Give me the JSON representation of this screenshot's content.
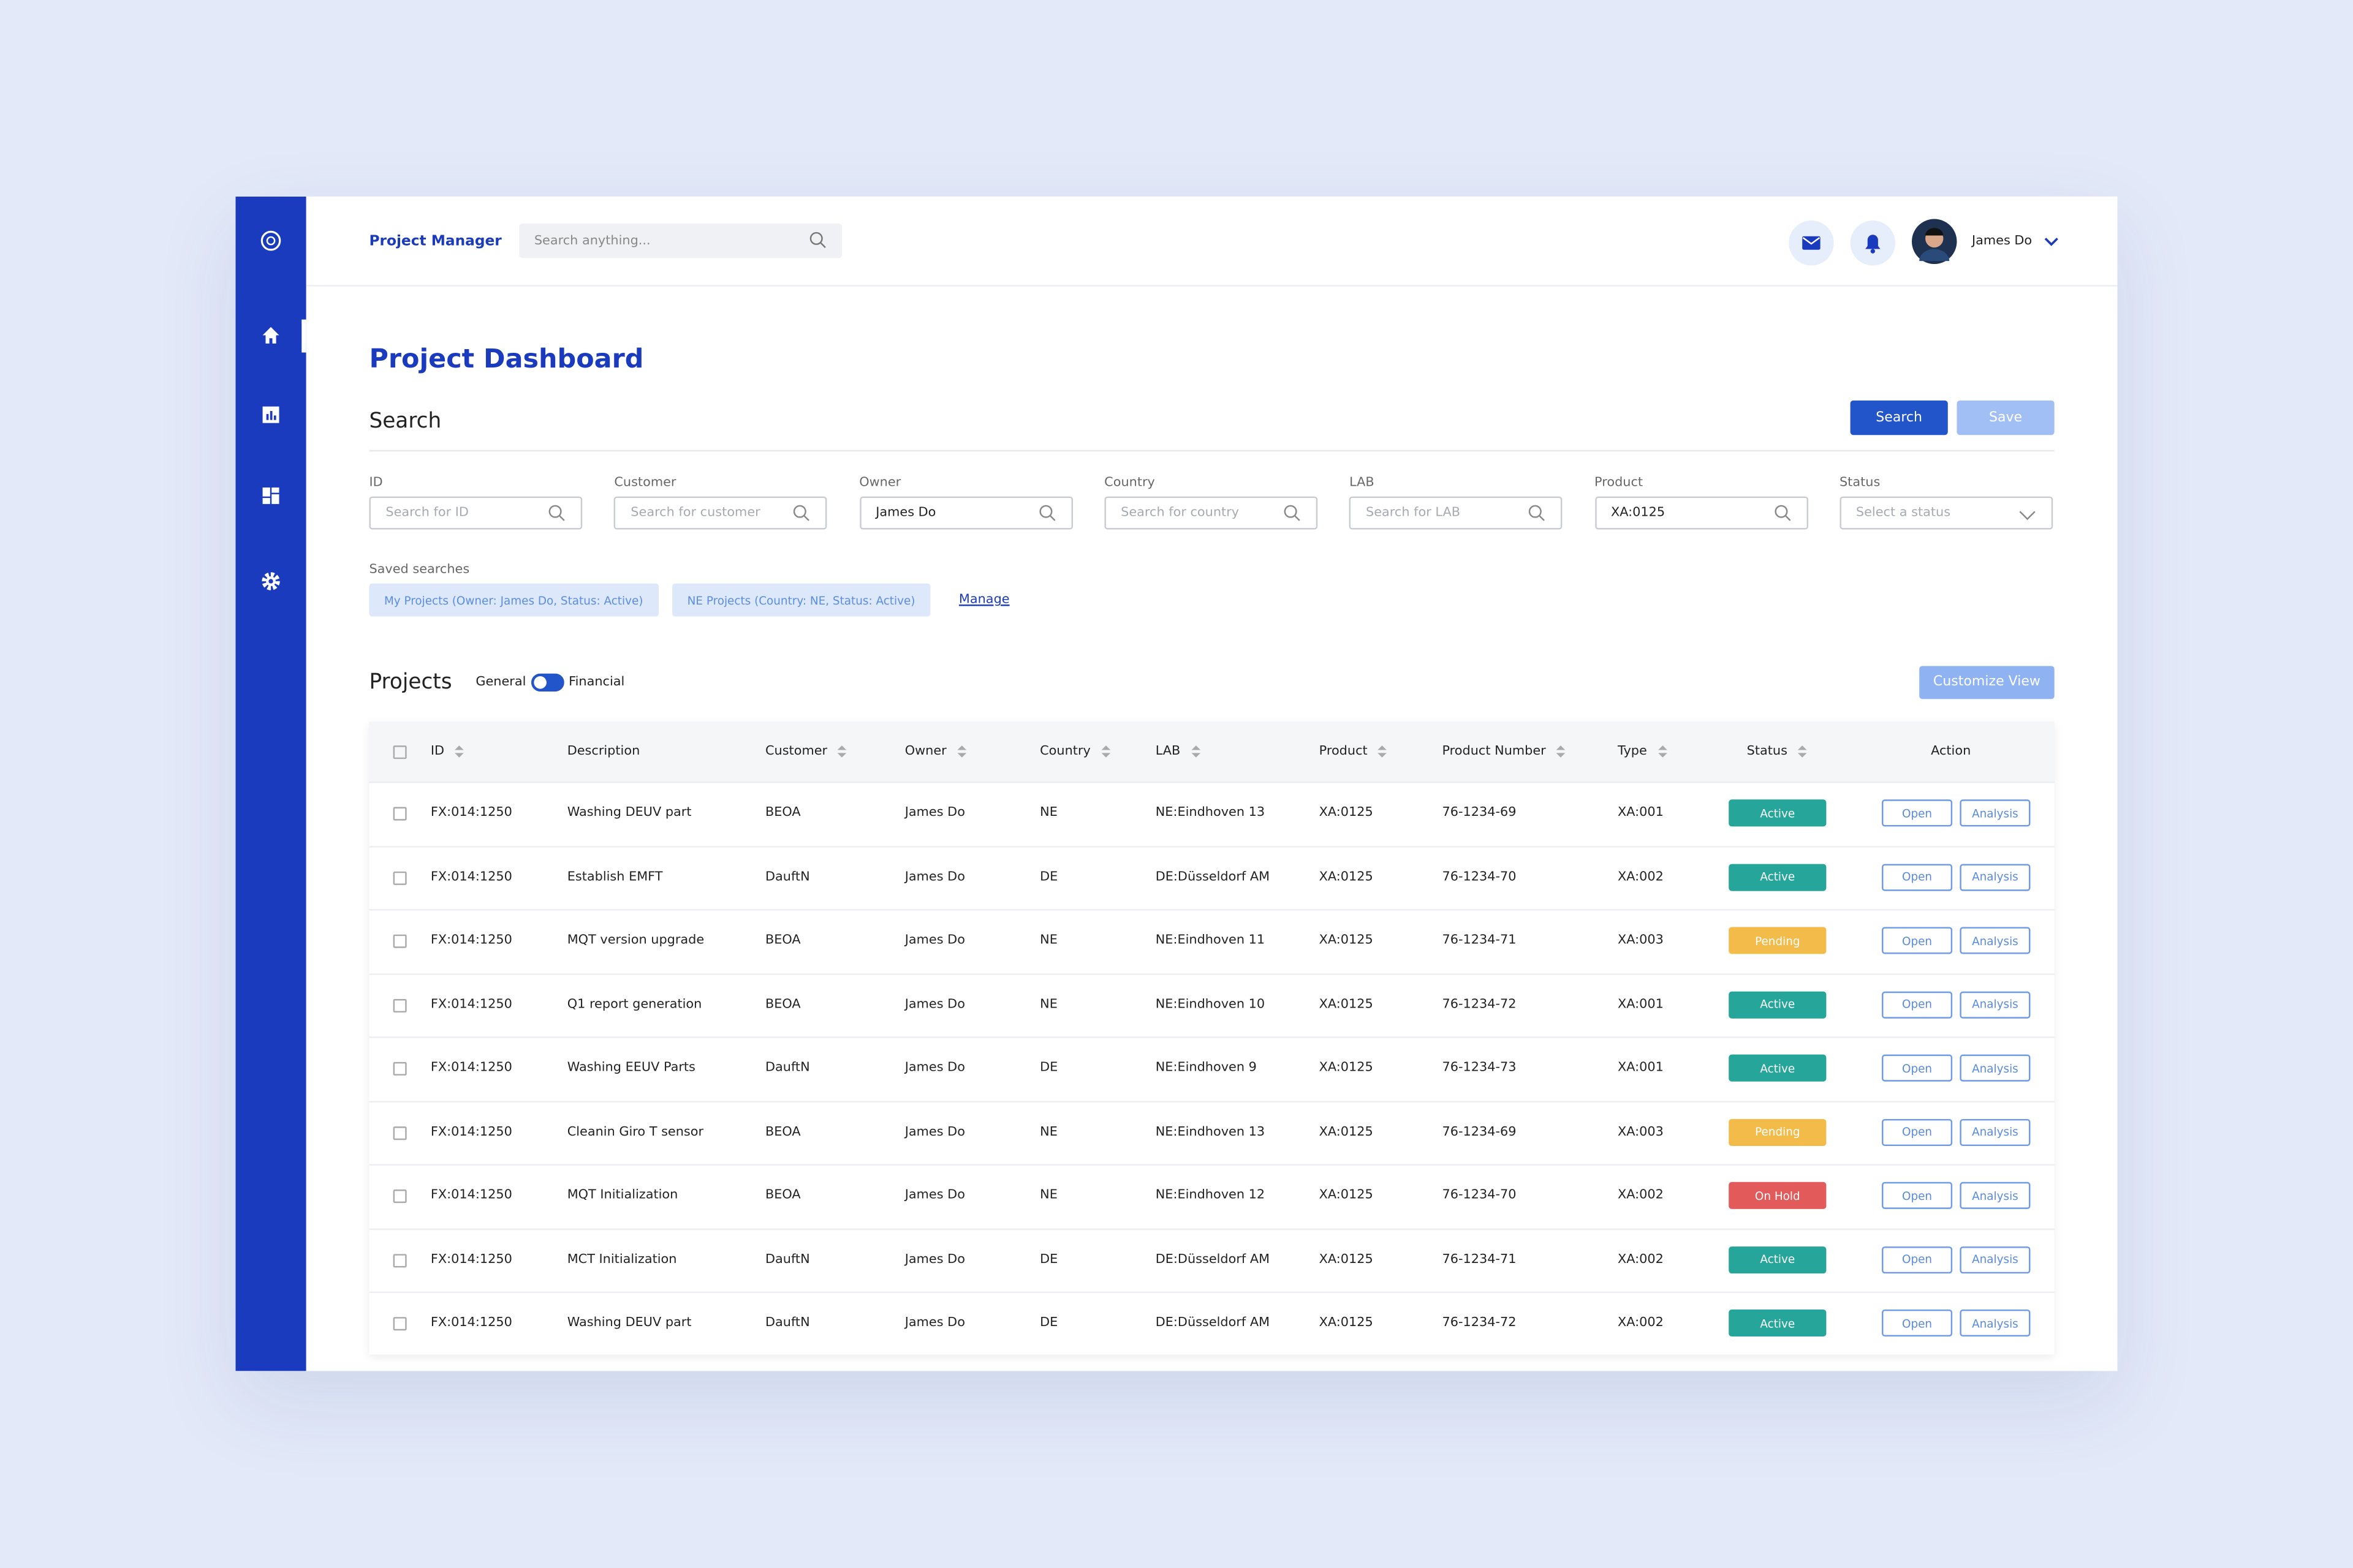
{
  "header": {
    "brand": "Project Manager",
    "search_placeholder": "Search anything...",
    "user": "James Do"
  },
  "page_title": "Project Dashboard",
  "search": {
    "title": "Search",
    "buttons": [
      "Search",
      "Save"
    ],
    "fields": [
      {
        "label": "ID",
        "placeholder": "Search for ID"
      },
      {
        "label": "Customer",
        "placeholder": "Search for customer"
      },
      {
        "label": "Owner",
        "value": "James Do"
      },
      {
        "label": "Country",
        "placeholder": "Search for country"
      },
      {
        "label": "LAB",
        "placeholder": "Search for LAB"
      },
      {
        "label": "Product",
        "value": "XA:0125"
      },
      {
        "label": "Status",
        "placeholder": "Select a status",
        "select": true
      }
    ],
    "saved_label": "Saved searches",
    "saved": [
      "My Projects (Owner: James Do, Status: Active)",
      "NE Projects (Country: NE, Status: Active)"
    ],
    "manage": "Manage"
  },
  "projects": {
    "title": "Projects",
    "toggle": [
      "General",
      "Financial"
    ],
    "customize": "Customize View",
    "columns": [
      {
        "label": "ID",
        "sortable": true
      },
      {
        "label": "Description",
        "sortable": false
      },
      {
        "label": "Customer",
        "sortable": true
      },
      {
        "label": "Owner",
        "sortable": true
      },
      {
        "label": "Country",
        "sortable": true
      },
      {
        "label": "LAB",
        "sortable": true
      },
      {
        "label": "Product",
        "sortable": true
      },
      {
        "label": "Product Number",
        "sortable": true
      },
      {
        "label": "Type",
        "sortable": true
      },
      {
        "label": "Status",
        "sortable": true
      },
      {
        "label": "Action",
        "sortable": false
      }
    ],
    "actions": [
      "Open",
      "Analysis"
    ],
    "status_colors": {
      "Active": "#26a69a",
      "Pending": "#f2bb4a",
      "On Hold": "#e25a5a"
    },
    "rows": [
      [
        "FX:014:1250",
        "Washing DEUV part",
        "BEOA",
        "James Do",
        "NE",
        "NE:Eindhoven 13",
        "XA:0125",
        "76-1234-69",
        "XA:001",
        "Active"
      ],
      [
        "FX:014:1250",
        "Establish EMFT",
        "DauftN",
        "James Do",
        "DE",
        "DE:Düsseldorf  AM",
        "XA:0125",
        "76-1234-70",
        "XA:002",
        "Active"
      ],
      [
        "FX:014:1250",
        "MQT version upgrade",
        "BEOA",
        "James Do",
        "NE",
        "NE:Eindhoven 11",
        "XA:0125",
        "76-1234-71",
        "XA:003",
        "Pending"
      ],
      [
        "FX:014:1250",
        "Q1 report generation",
        "BEOA",
        "James Do",
        "NE",
        "NE:Eindhoven 10",
        "XA:0125",
        "76-1234-72",
        "XA:001",
        "Active"
      ],
      [
        "FX:014:1250",
        "Washing EEUV Parts",
        "DauftN",
        "James Do",
        "DE",
        "NE:Eindhoven 9",
        "XA:0125",
        "76-1234-73",
        "XA:001",
        "Active"
      ],
      [
        "FX:014:1250",
        "Cleanin Giro T sensor",
        "BEOA",
        "James Do",
        "NE",
        "NE:Eindhoven 13",
        "XA:0125",
        "76-1234-69",
        "XA:003",
        "Pending"
      ],
      [
        "FX:014:1250",
        "MQT Initialization",
        "BEOA",
        "James Do",
        "NE",
        "NE:Eindhoven 12",
        "XA:0125",
        "76-1234-70",
        "XA:002",
        "On Hold"
      ],
      [
        "FX:014:1250",
        "MCT Initialization",
        "DauftN",
        "James Do",
        "DE",
        "DE:Düsseldorf  AM",
        "XA:0125",
        "76-1234-71",
        "XA:002",
        "Active"
      ],
      [
        "FX:014:1250",
        "Washing DEUV part",
        "DauftN",
        "James Do",
        "DE",
        "DE:Düsseldorf  AM",
        "XA:0125",
        "76-1234-72",
        "XA:002",
        "Active"
      ]
    ]
  }
}
